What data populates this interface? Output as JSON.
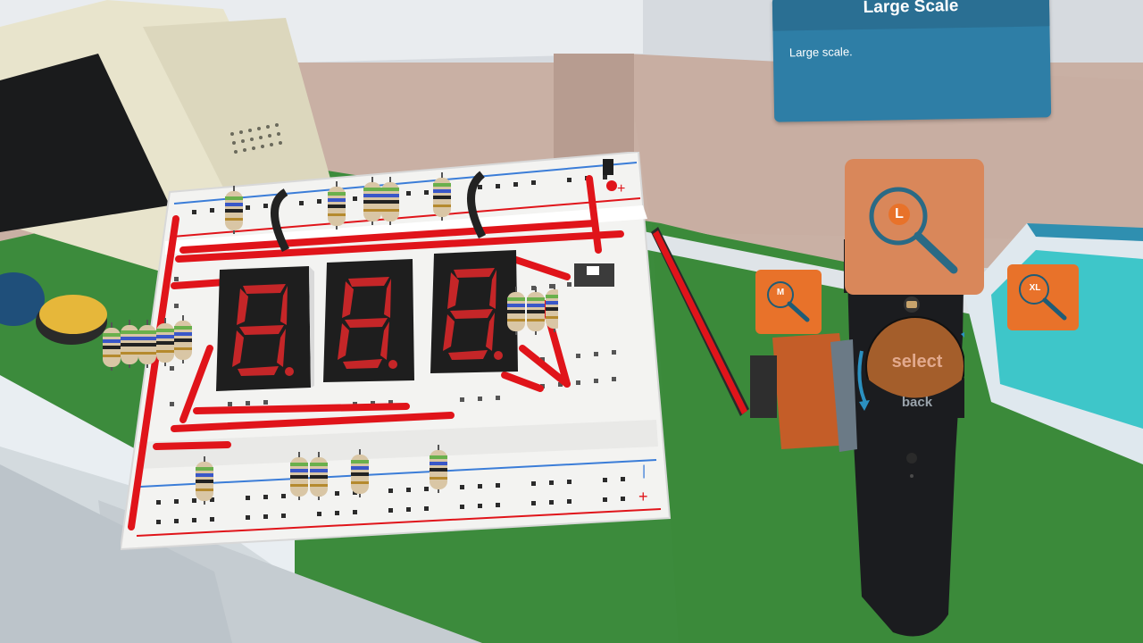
{
  "tooltip": {
    "title": "Large Scale",
    "body": "Large scale."
  },
  "scale_options": {
    "small": "M",
    "large": "L",
    "extra_large": "XL"
  },
  "controller": {
    "select_label": "select",
    "back_label": "back"
  },
  "displays": [
    "8.",
    "8.",
    "8."
  ],
  "colors": {
    "accent": "#e8722a",
    "panel": "#2e7ea6",
    "trace": "#e0141a",
    "board": "#f2f2f0"
  }
}
